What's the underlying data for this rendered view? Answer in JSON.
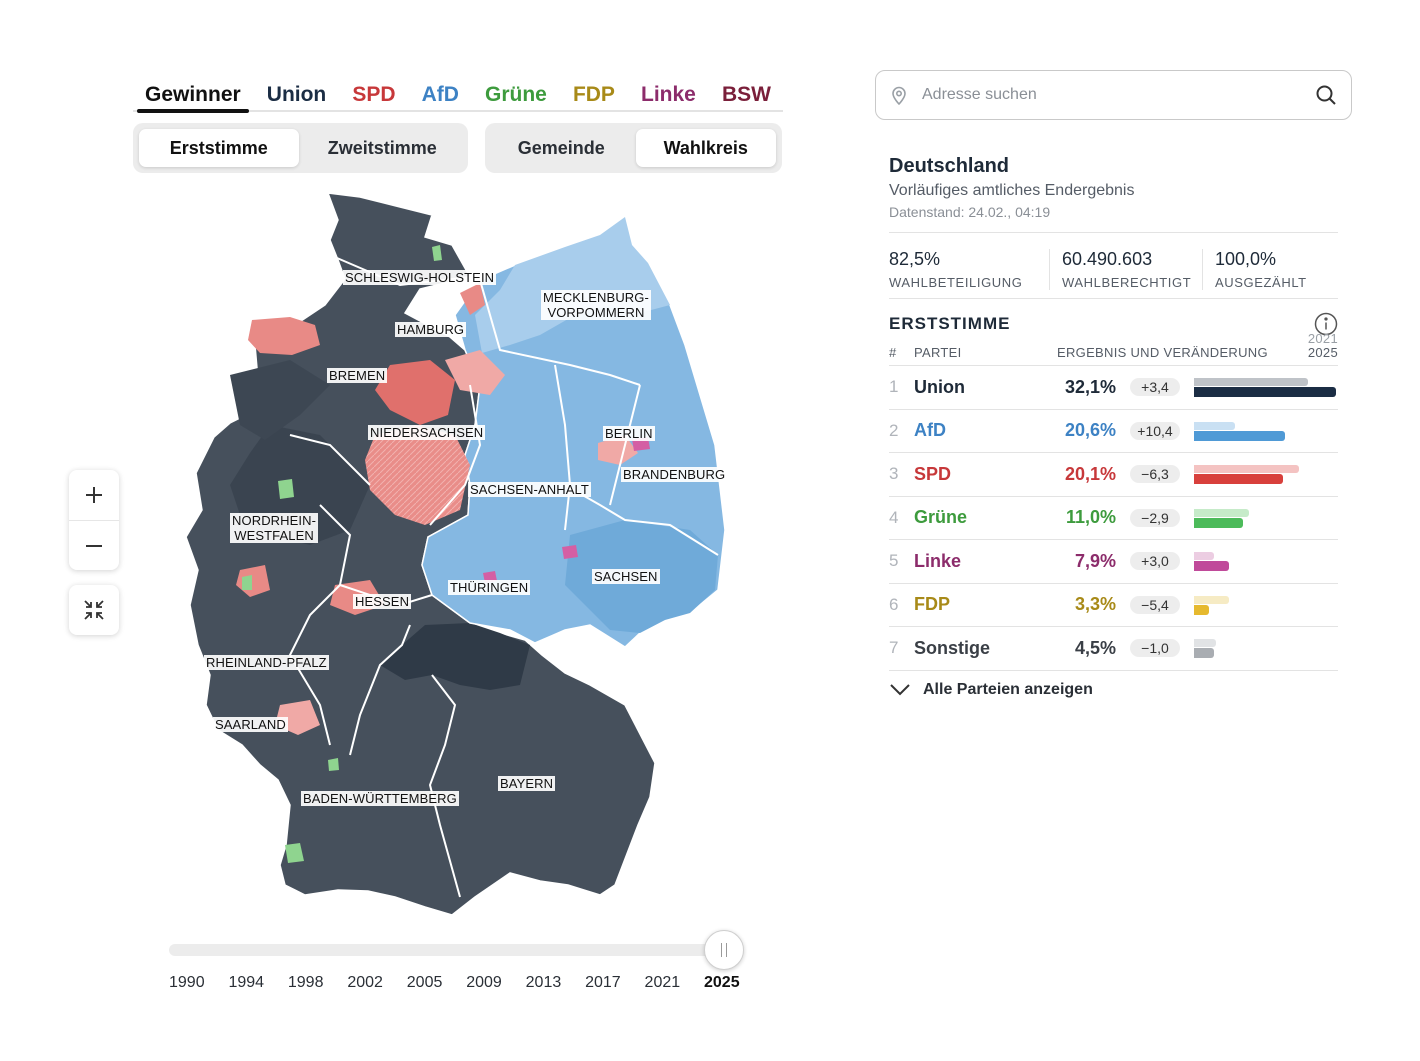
{
  "party_tabs": [
    {
      "label": "Gewinner",
      "color": "#111111",
      "active": true
    },
    {
      "label": "Union",
      "color": "#1b2d44"
    },
    {
      "label": "SPD",
      "color": "#c7383a"
    },
    {
      "label": "AfD",
      "color": "#3d82c4"
    },
    {
      "label": "Grüne",
      "color": "#3d9b3d"
    },
    {
      "label": "FDP",
      "color": "#a88a18"
    },
    {
      "label": "Linke",
      "color": "#8c2c6b"
    },
    {
      "label": "BSW",
      "color": "#7a1f3a"
    }
  ],
  "vote_toggle": {
    "first": "Erststimme",
    "second": "Zweitstimme",
    "selected": "Erststimme"
  },
  "level_toggle": {
    "first": "Gemeinde",
    "second": "Wahlkreis",
    "selected": "Wahlkreis"
  },
  "map": {
    "state_labels": [
      "SCHLESWIG-HOLSTEIN",
      "MECKLENBURG-\nVORPOMMERN",
      "HAMBURG",
      "BREMEN",
      "NIEDERSACHSEN",
      "BERLIN",
      "BRANDENBURG",
      "SACHSEN-ANHALT",
      "NORDRHEIN-\nWESTFALEN",
      "SACHSEN",
      "THÜRINGEN",
      "HESSEN",
      "RHEINLAND-PFALZ",
      "SAARLAND",
      "BADEN-WÜRTTEMBERG",
      "BAYERN"
    ],
    "colors": {
      "union": "#46505c",
      "union_dark": "#2f3a47",
      "afd": "#7fb3de",
      "afd_light": "#a8cdec",
      "spd": "#e88a86",
      "spd_light": "#f0a9a6",
      "gruene": "#8fd48f",
      "linke": "#d45fa4"
    }
  },
  "timeline": {
    "years": [
      "1990",
      "1994",
      "1998",
      "2002",
      "2005",
      "2009",
      "2013",
      "2017",
      "2021",
      "2025"
    ],
    "selected": "2025"
  },
  "search": {
    "placeholder": "Adresse suchen"
  },
  "panel": {
    "region": "Deutschland",
    "subtitle": "Vorläufiges amtliches Endergebnis",
    "datestamp": "Datenstand: 24.02., 04:19",
    "stats": [
      {
        "value": "82,5%",
        "label": "WAHLBETEILIGUNG"
      },
      {
        "value": "60.490.603",
        "label": "WAHLBERECHTIGT"
      },
      {
        "value": "100,0%",
        "label": "AUSGEZÄHLT"
      }
    ],
    "section_title": "ERSTSTIMME",
    "col_rank": "#",
    "col_party": "PARTEI",
    "col_result": "ERGEBNIS UND VERÄNDERUNG",
    "legend_prev_year": "2021",
    "legend_cur_year": "2025",
    "results": [
      {
        "rank": "1",
        "party": "Union",
        "value": "32,1%",
        "diff": "+3,4",
        "pct": 32.1,
        "prev_pct": 28.7,
        "color": "#1b2d44",
        "prev_color": "#bfc3c8"
      },
      {
        "rank": "2",
        "party": "AfD",
        "value": "20,6%",
        "diff": "+10,4",
        "pct": 20.6,
        "prev_pct": 10.2,
        "color": "#4f9ad6",
        "prev_color": "#c9e0f3"
      },
      {
        "rank": "3",
        "party": "SPD",
        "value": "20,1%",
        "diff": "−6,3",
        "pct": 20.1,
        "prev_pct": 26.4,
        "color": "#d8403c",
        "prev_color": "#f4c3c2"
      },
      {
        "rank": "4",
        "party": "Grüne",
        "value": "11,0%",
        "diff": "−2,9",
        "pct": 11.0,
        "prev_pct": 13.9,
        "color": "#4cbb5a",
        "prev_color": "#c6ebc9"
      },
      {
        "rank": "5",
        "party": "Linke",
        "value": "7,9%",
        "diff": "+3,0",
        "pct": 7.9,
        "prev_pct": 4.9,
        "color": "#c04a9a",
        "prev_color": "#eccde2"
      },
      {
        "rank": "6",
        "party": "FDP",
        "value": "3,3%",
        "diff": "−5,4",
        "pct": 3.3,
        "prev_pct": 8.7,
        "color": "#e6b92e",
        "prev_color": "#f6ebc4"
      },
      {
        "rank": "7",
        "party": "Sonstige",
        "value": "4,5%",
        "diff": "−1,0",
        "pct": 4.5,
        "prev_pct": 5.5,
        "color": "#a9adb2",
        "prev_color": "#e1e3e5"
      }
    ],
    "show_all_label": "Alle Parteien anzeigen",
    "text_colors": {
      "Union": "#1e2a38",
      "AfD": "#3d82c4",
      "SPD": "#c7383a",
      "Grüne": "#3d9b3d",
      "Linke": "#8c2c6b",
      "FDP": "#a88a18",
      "Sonstige": "#3a3f46"
    }
  }
}
